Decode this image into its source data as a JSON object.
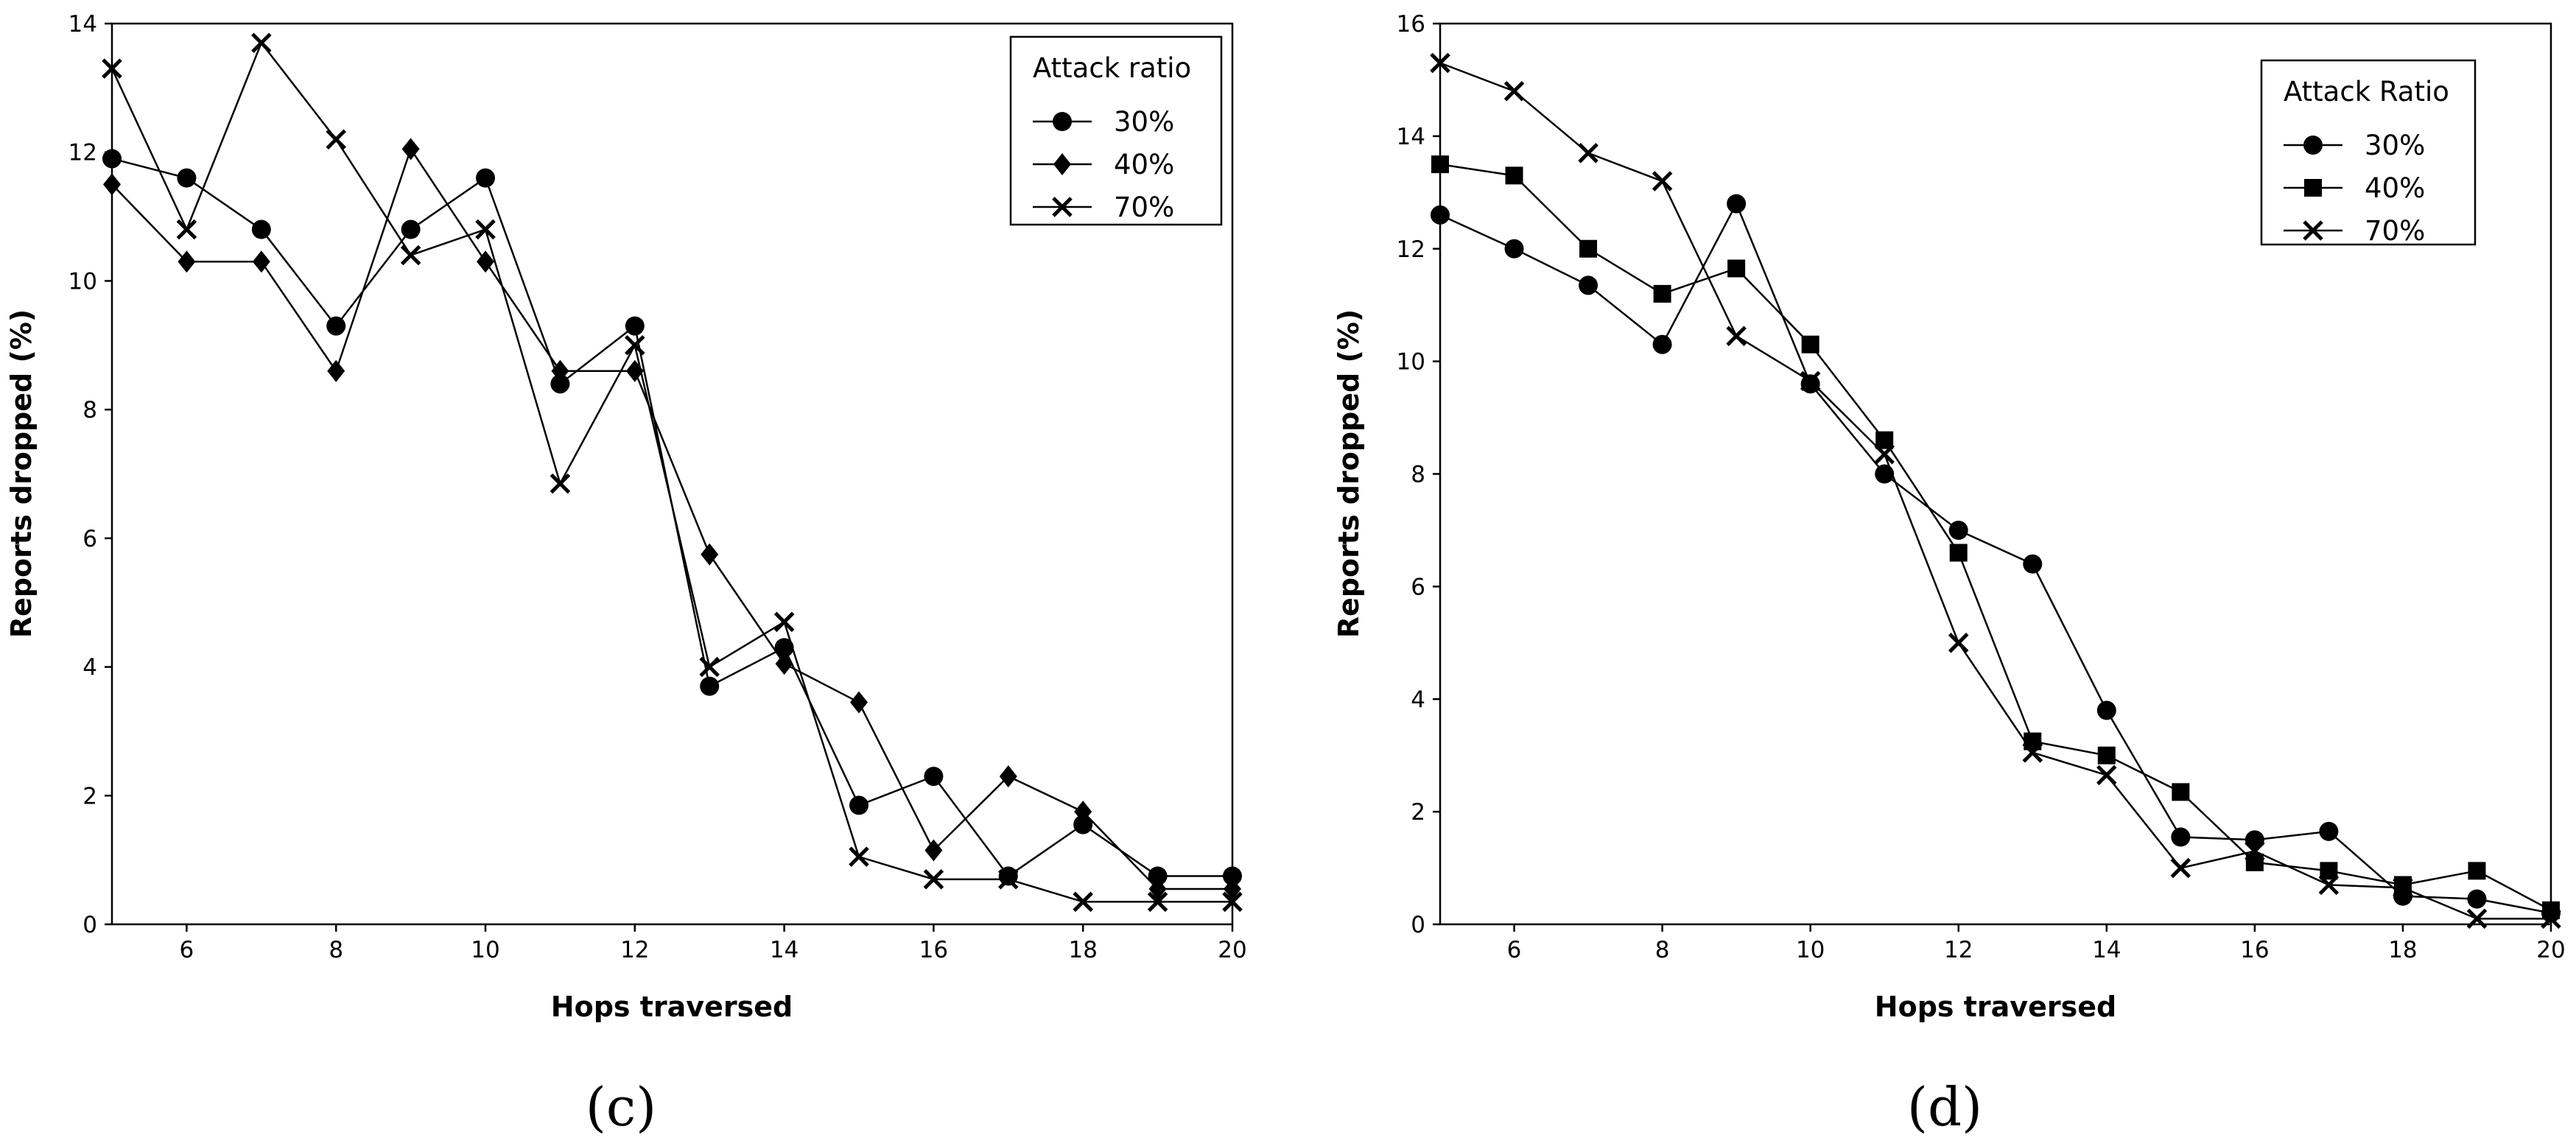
{
  "chart_data": [
    {
      "type": "line",
      "panel_label": "(c)",
      "xlabel": "Hops traversed",
      "ylabel": "Reports dropped (%)",
      "xlim": [
        5,
        20
      ],
      "ylim": [
        0,
        14
      ],
      "xticks": [
        6,
        8,
        10,
        12,
        14,
        16,
        18,
        20
      ],
      "yticks": [
        0,
        2,
        4,
        6,
        8,
        10,
        12,
        14
      ],
      "grid": false,
      "legend_title": "Attack ratio",
      "legend_position": "top-right",
      "x": [
        5,
        6,
        7,
        8,
        9,
        10,
        11,
        12,
        13,
        14,
        15,
        16,
        17,
        18,
        19,
        20
      ],
      "series": [
        {
          "name": "30%",
          "marker": "circle",
          "values": [
            11.9,
            11.6,
            10.8,
            9.3,
            10.8,
            11.6,
            8.4,
            9.3,
            3.7,
            4.3,
            1.85,
            2.3,
            0.75,
            1.55,
            0.75,
            0.75
          ]
        },
        {
          "name": "40%",
          "marker": "diamond",
          "values": [
            11.5,
            10.3,
            10.3,
            8.6,
            12.05,
            10.3,
            8.6,
            8.6,
            5.75,
            4.05,
            3.45,
            1.15,
            2.3,
            1.75,
            0.55,
            0.55
          ]
        },
        {
          "name": "70%",
          "marker": "x",
          "values": [
            13.3,
            10.8,
            13.7,
            12.2,
            10.4,
            10.8,
            6.85,
            9.0,
            4.0,
            4.7,
            1.05,
            0.7,
            0.7,
            0.35,
            0.35,
            0.35
          ]
        }
      ]
    },
    {
      "type": "line",
      "panel_label": "(d)",
      "xlabel": "Hops traversed",
      "ylabel": "Reports dropped (%)",
      "xlim": [
        5,
        20
      ],
      "ylim": [
        0,
        16
      ],
      "xticks": [
        6,
        8,
        10,
        12,
        14,
        16,
        18,
        20
      ],
      "yticks": [
        0,
        2,
        4,
        6,
        8,
        10,
        12,
        14,
        16
      ],
      "grid": false,
      "legend_title": "Attack Ratio",
      "legend_position": "top-right",
      "x": [
        5,
        6,
        7,
        8,
        9,
        10,
        11,
        12,
        13,
        14,
        15,
        16,
        17,
        18,
        19,
        20
      ],
      "series": [
        {
          "name": "30%",
          "marker": "circle",
          "values": [
            12.6,
            12.0,
            11.35,
            10.3,
            12.8,
            9.6,
            8.0,
            7.0,
            6.4,
            3.8,
            1.55,
            1.5,
            1.65,
            0.5,
            0.45,
            0.2
          ]
        },
        {
          "name": "40%",
          "marker": "square",
          "values": [
            13.5,
            13.3,
            12.0,
            11.2,
            11.65,
            10.3,
            8.6,
            6.6,
            3.25,
            3.0,
            2.35,
            1.1,
            0.95,
            0.7,
            0.95,
            0.25
          ]
        },
        {
          "name": "70%",
          "marker": "x",
          "values": [
            15.3,
            14.8,
            13.7,
            13.2,
            10.45,
            9.65,
            8.35,
            5.0,
            3.05,
            2.65,
            1.0,
            1.3,
            0.7,
            0.65,
            0.1,
            0.1
          ]
        }
      ]
    }
  ]
}
